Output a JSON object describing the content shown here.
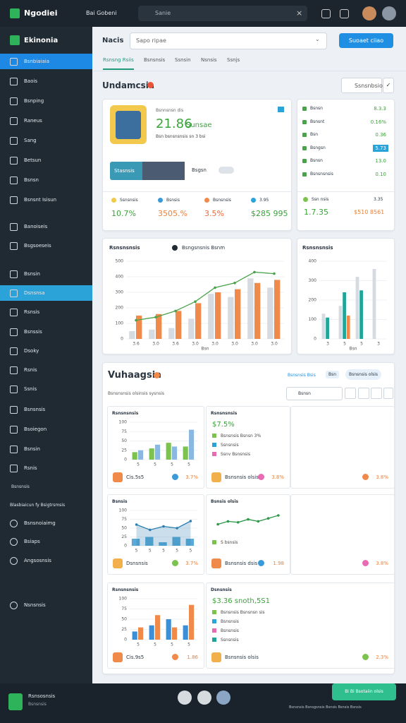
{
  "topbar": {
    "logo": "Ngodiei",
    "menu": "Bai Gobeni",
    "search": "Sanie"
  },
  "sidebar": {
    "brand": "Ekinonia",
    "items": [
      "Bsnbiaiaia",
      "Baois",
      "Bsnping",
      "Raneus",
      "Sang",
      "Betsun",
      "Bsnsn",
      "Bsnsnt Isisun",
      "Banoiseis",
      "Bsgsoeseis",
      "Bsnsin",
      "Dsnsnsa",
      "Rsnsis",
      "Bsnssis",
      "Dsoky",
      "Rsnis",
      "Ssnis",
      "Bsnsnsis",
      "Bsoiegon",
      "Bsnsin",
      "Rsnis"
    ],
    "section": "Bsnsnsis",
    "section_title": "Blasbiaicun fy Bsigtrsmsis",
    "items2": [
      "Bsnsnoiaimg",
      "Bsiaps",
      "Angsosnsis",
      "Nsnsnsis"
    ]
  },
  "header": {
    "title": "Nacis",
    "select": "Sapo ripae",
    "button": "Suoaet ciiao",
    "tabs": [
      "Rsnsng Rsiis",
      "Bsnsnsis",
      "Ssnsin",
      "Nsnsis",
      "Ssnjs"
    ]
  },
  "overview": {
    "title": "Undamcsia",
    "search": "Ssnsnbsio",
    "hero": {
      "label": "Bsnnsnsn dis",
      "value": "21.86",
      "unit": "Sunsae",
      "sub": "Bsn bsnsnsnsis sn 3 bsi",
      "tag": "Stasnsis",
      "caption": "Bsgsn"
    },
    "stats": [
      {
        "label": "Ssnsnsis",
        "value": "10.7%"
      },
      {
        "label": "Bsnsis",
        "value": "3505.%"
      },
      {
        "label": "Bsnsnsis",
        "value": "3.5%"
      },
      {
        "label": "3.95",
        "value": "$285 995"
      }
    ],
    "list": [
      {
        "label": "Bsnsn",
        "value": "8.3.3"
      },
      {
        "label": "Bsnsnt",
        "value": "0.16%"
      },
      {
        "label": "Bsn",
        "value": "0.36"
      },
      {
        "label": "Bsngsn",
        "value": "5.73"
      },
      {
        "label": "Bsnsn",
        "value": "13.0"
      },
      {
        "label": "Bsnsnsnsis",
        "value": "0.10"
      }
    ],
    "summary": [
      {
        "label": "Ssn nsis",
        "value": "1.7.35"
      },
      {
        "label": "3.35",
        "value": "$510 8561"
      }
    ]
  },
  "charts": [
    {
      "type": "bar",
      "title": "Rsnsnsnsis",
      "legend": "Bsngsnsnis Bsnm",
      "xlabel": "Bsn",
      "categories": [
        "3.6",
        "3.0",
        "3.6",
        "3.0",
        "3.0",
        "3.0",
        "3.0",
        "3.0"
      ],
      "ylim": [
        0,
        500
      ],
      "yticks": [
        0,
        100,
        200,
        300,
        400,
        500
      ],
      "series": [
        {
          "type": "bar",
          "color": "#d5dbe1",
          "values": [
            50,
            60,
            70,
            130,
            290,
            270,
            390,
            330
          ]
        },
        {
          "type": "bar",
          "color": "#f08a4b",
          "values": [
            150,
            160,
            180,
            230,
            300,
            320,
            360,
            380
          ]
        },
        {
          "type": "line",
          "color": "#4aa34a",
          "values": [
            120,
            140,
            180,
            240,
            330,
            360,
            430,
            420
          ]
        }
      ]
    },
    {
      "type": "bar",
      "title": "Rsnsnsnsis",
      "xlabel": "Bsn",
      "categories": [
        "3",
        "5",
        "5",
        "3"
      ],
      "ylim": [
        0,
        400
      ],
      "yticks": [
        0,
        100,
        200,
        300,
        400
      ],
      "series": [
        {
          "type": "bar",
          "color": "#d5dbe1",
          "values": [
            130,
            170,
            320,
            360
          ]
        },
        {
          "type": "bar",
          "color": "#1fa69a",
          "values": [
            110,
            240,
            250,
            0
          ]
        },
        {
          "type": "bar",
          "color": "#f08a4b",
          "values": [
            0,
            120,
            0,
            0
          ]
        }
      ]
    }
  ],
  "section": {
    "title": "Vuhaagsia",
    "links": [
      "Bsnsnsis Bsis",
      "Bsn",
      "Bsnsnsis olsis"
    ],
    "search": "Bsnsn",
    "subtitle": "Bsnsnsnsis olsinsis sysnsis"
  },
  "panels": [
    {
      "title": "Rsnsnsnsis",
      "chart": {
        "type": "bar",
        "categories": [
          "5",
          "5",
          "5",
          "5"
        ],
        "ylim": [
          0,
          100
        ],
        "yticks": [
          0,
          25,
          50,
          75,
          100
        ],
        "series": [
          {
            "type": "bar",
            "color": "#7cc24e",
            "values": [
              20,
              30,
              45,
              35
            ]
          },
          {
            "type": "bar",
            "color": "#8bb8e0",
            "values": [
              25,
              40,
              35,
              80
            ]
          }
        ]
      },
      "footer": [
        "Cis.5s5",
        "3.7%"
      ]
    },
    {
      "title": "Rsnsnsnsis",
      "value": "$7.5%",
      "lines": [
        "Bsnsnsis Bsnsn 3%",
        "Ssnsnsis",
        "Ssnv Bsnsnsis"
      ],
      "footer": [
        "Bsnsnsis olsis",
        "3.8%"
      ]
    },
    {
      "footer": [
        "3.8%"
      ]
    },
    {
      "title": "Bsnsis",
      "chart": {
        "type": "line",
        "categories": [
          "5",
          "5",
          "5",
          "5",
          "5"
        ],
        "ylim": [
          0,
          100
        ],
        "yticks": [
          0,
          25,
          50,
          75,
          100
        ],
        "series": [
          {
            "type": "area",
            "color": "#2a7fb0",
            "values": [
              60,
              45,
              55,
              50,
              70
            ]
          },
          {
            "type": "bar",
            "color": "#5aa9d6",
            "values": [
              20,
              25,
              10,
              25,
              20
            ]
          }
        ]
      },
      "footer": [
        "Dsnsnsis",
        "3.7%"
      ]
    },
    {
      "title": "Bsnsis olsis",
      "chart": {
        "type": "line",
        "ylim": [
          0,
          100
        ],
        "series": [
          {
            "type": "line",
            "color": "#2e9a4a",
            "values": [
              30,
              45,
              40,
              55,
              45,
              60,
              75
            ]
          }
        ]
      },
      "lines": [
        "S bsnsis"
      ],
      "footer": [
        "Bsnsnsis dsis",
        "1.98"
      ]
    },
    {
      "footer": [
        "3.8%"
      ]
    },
    {
      "title": "Rsnsnsnsis",
      "chart": {
        "type": "bar",
        "categories": [
          "5",
          "5",
          "5",
          "5"
        ],
        "ylim": [
          0,
          100
        ],
        "yticks": [
          0,
          25,
          50,
          75,
          100
        ],
        "series": [
          {
            "type": "bar",
            "color": "#3b8fd6",
            "values": [
              20,
              35,
              50,
              35
            ]
          },
          {
            "type": "bar",
            "color": "#f08a4b",
            "values": [
              30,
              60,
              30,
              85
            ]
          }
        ]
      },
      "footer": [
        "Cis.9s5",
        "1.86"
      ]
    },
    {
      "title": "Dsnsnsis",
      "value": "$3.36 snoth,5S1",
      "lines": [
        "Bsnsnsis Bsnsnsn sis",
        "Bsnsnsis",
        "Bsnsnsis",
        "Ssnsnsis"
      ],
      "footer": [
        "Bsnsnsis olsis",
        "2.3%"
      ]
    }
  ],
  "footer": {
    "user": "Rsnsosnsis",
    "role": "Bsnsnsis",
    "button": "Bi Bi Bsotaiin olsis",
    "note": "Bsnsnsis Bsnsgsnsis Bsnsis Bsnsis Bsnsis"
  }
}
